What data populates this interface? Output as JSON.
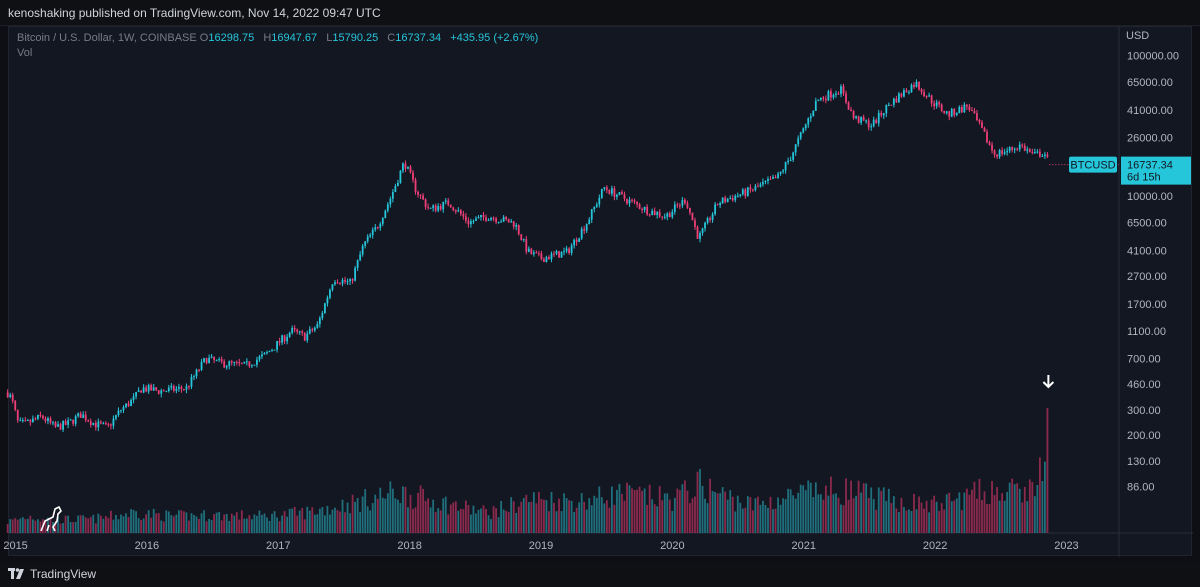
{
  "header": {
    "publisher": "kenoshaking published on TradingView.com, Nov 14, 2022 09:47 UTC"
  },
  "legend": {
    "symbol": "Bitcoin / U.S. Dollar, 1W, COINBASE",
    "open_key": "O",
    "open": "16298.75",
    "high_key": "H",
    "high": "16947.67",
    "low_key": "L",
    "low": "15790.25",
    "close_key": "C",
    "close": "16737.34",
    "change": "+435.95 (+2.67%)",
    "vol_label": "Vol"
  },
  "price_axis": {
    "currency": "USD",
    "tag_symbol": "BTCUSD",
    "tag_price": "16737.34",
    "tag_countdown": "6d 15h"
  },
  "footer": {
    "brand": "TradingView"
  },
  "colors": {
    "up": "#26c6da",
    "down": "#ef3f77",
    "vol_up": "#1f6f7c",
    "vol_down": "#8c2a4d",
    "background": "#131722",
    "text": "#b2b5be"
  },
  "chart_data": {
    "type": "candlestick",
    "title": "Bitcoin / U.S. Dollar, 1W, COINBASE",
    "scale": "log",
    "ylim": [
      40,
      140000
    ],
    "y_ticks": [
      "100000.00",
      "65000.00",
      "41000.00",
      "26000.00",
      "16737.34",
      "10000.00",
      "6500.00",
      "4100.00",
      "2700.00",
      "1700.00",
      "1100.00",
      "700.00",
      "460.00",
      "300.00",
      "200.00",
      "130.00",
      "86.00"
    ],
    "y_tick_values": [
      100000,
      65000,
      41000,
      26000,
      16737.34,
      10000,
      6500,
      4100,
      2700,
      1700,
      1100,
      700,
      460,
      300,
      200,
      130,
      86
    ],
    "x_ticks": [
      "2015",
      "2016",
      "2017",
      "2018",
      "2019",
      "2020",
      "2021",
      "2022",
      "2023"
    ],
    "x_tick_years": [
      2015,
      2016,
      2017,
      2018,
      2019,
      2020,
      2021,
      2022,
      2023
    ],
    "x_range": [
      2014.95,
      2023.4
    ],
    "price_path": [
      [
        2014.94,
        400
      ],
      [
        2014.97,
        360
      ],
      [
        2015.02,
        240
      ],
      [
        2015.08,
        240
      ],
      [
        2015.2,
        270
      ],
      [
        2015.3,
        225
      ],
      [
        2015.4,
        240
      ],
      [
        2015.5,
        280
      ],
      [
        2015.6,
        240
      ],
      [
        2015.7,
        225
      ],
      [
        2015.8,
        300
      ],
      [
        2015.9,
        360
      ],
      [
        2015.96,
        430
      ],
      [
        2016.1,
        410
      ],
      [
        2016.3,
        430
      ],
      [
        2016.45,
        700
      ],
      [
        2016.55,
        650
      ],
      [
        2016.75,
        620
      ],
      [
        2016.9,
        740
      ],
      [
        2017.0,
        900
      ],
      [
        2017.1,
        1100
      ],
      [
        2017.2,
        1000
      ],
      [
        2017.3,
        1200
      ],
      [
        2017.42,
        2600
      ],
      [
        2017.55,
        2400
      ],
      [
        2017.65,
        4500
      ],
      [
        2017.75,
        6000
      ],
      [
        2017.85,
        9500
      ],
      [
        2017.96,
        17500
      ],
      [
        2018.05,
        11000
      ],
      [
        2018.15,
        8000
      ],
      [
        2018.3,
        9000
      ],
      [
        2018.45,
        6500
      ],
      [
        2018.6,
        7200
      ],
      [
        2018.8,
        6400
      ],
      [
        2018.9,
        4000
      ],
      [
        2019.0,
        3600
      ],
      [
        2019.2,
        4000
      ],
      [
        2019.35,
        6500
      ],
      [
        2019.48,
        11500
      ],
      [
        2019.6,
        10000
      ],
      [
        2019.8,
        8000
      ],
      [
        2019.95,
        7200
      ],
      [
        2020.1,
        9500
      ],
      [
        2020.2,
        5000
      ],
      [
        2020.35,
        9000
      ],
      [
        2020.6,
        11000
      ],
      [
        2020.8,
        13500
      ],
      [
        2020.9,
        19000
      ],
      [
        2021.0,
        30000
      ],
      [
        2021.1,
        48000
      ],
      [
        2021.28,
        58000
      ],
      [
        2021.38,
        36000
      ],
      [
        2021.52,
        32000
      ],
      [
        2021.65,
        45000
      ],
      [
        2021.85,
        64000
      ],
      [
        2021.98,
        47000
      ],
      [
        2022.1,
        38000
      ],
      [
        2022.25,
        44000
      ],
      [
        2022.35,
        30000
      ],
      [
        2022.45,
        20000
      ],
      [
        2022.55,
        21000
      ],
      [
        2022.65,
        23000
      ],
      [
        2022.75,
        19500
      ],
      [
        2022.83,
        20500
      ],
      [
        2022.87,
        16737
      ]
    ],
    "volume_path": [
      [
        2014.94,
        60
      ],
      [
        2015.1,
        90
      ],
      [
        2015.3,
        70
      ],
      [
        2015.6,
        75
      ],
      [
        2015.9,
        110
      ],
      [
        2016.2,
        90
      ],
      [
        2016.5,
        95
      ],
      [
        2016.9,
        90
      ],
      [
        2017.2,
        110
      ],
      [
        2017.5,
        150
      ],
      [
        2017.9,
        220
      ],
      [
        2018.2,
        170
      ],
      [
        2018.6,
        110
      ],
      [
        2018.9,
        180
      ],
      [
        2019.3,
        170
      ],
      [
        2019.6,
        210
      ],
      [
        2020.0,
        180
      ],
      [
        2020.2,
        260
      ],
      [
        2020.6,
        150
      ],
      [
        2021.0,
        210
      ],
      [
        2021.3,
        230
      ],
      [
        2021.7,
        170
      ],
      [
        2022.0,
        150
      ],
      [
        2022.4,
        230
      ],
      [
        2022.7,
        210
      ],
      [
        2022.86,
        420
      ]
    ],
    "annotations": [
      "down arrow above final volume bar"
    ]
  }
}
